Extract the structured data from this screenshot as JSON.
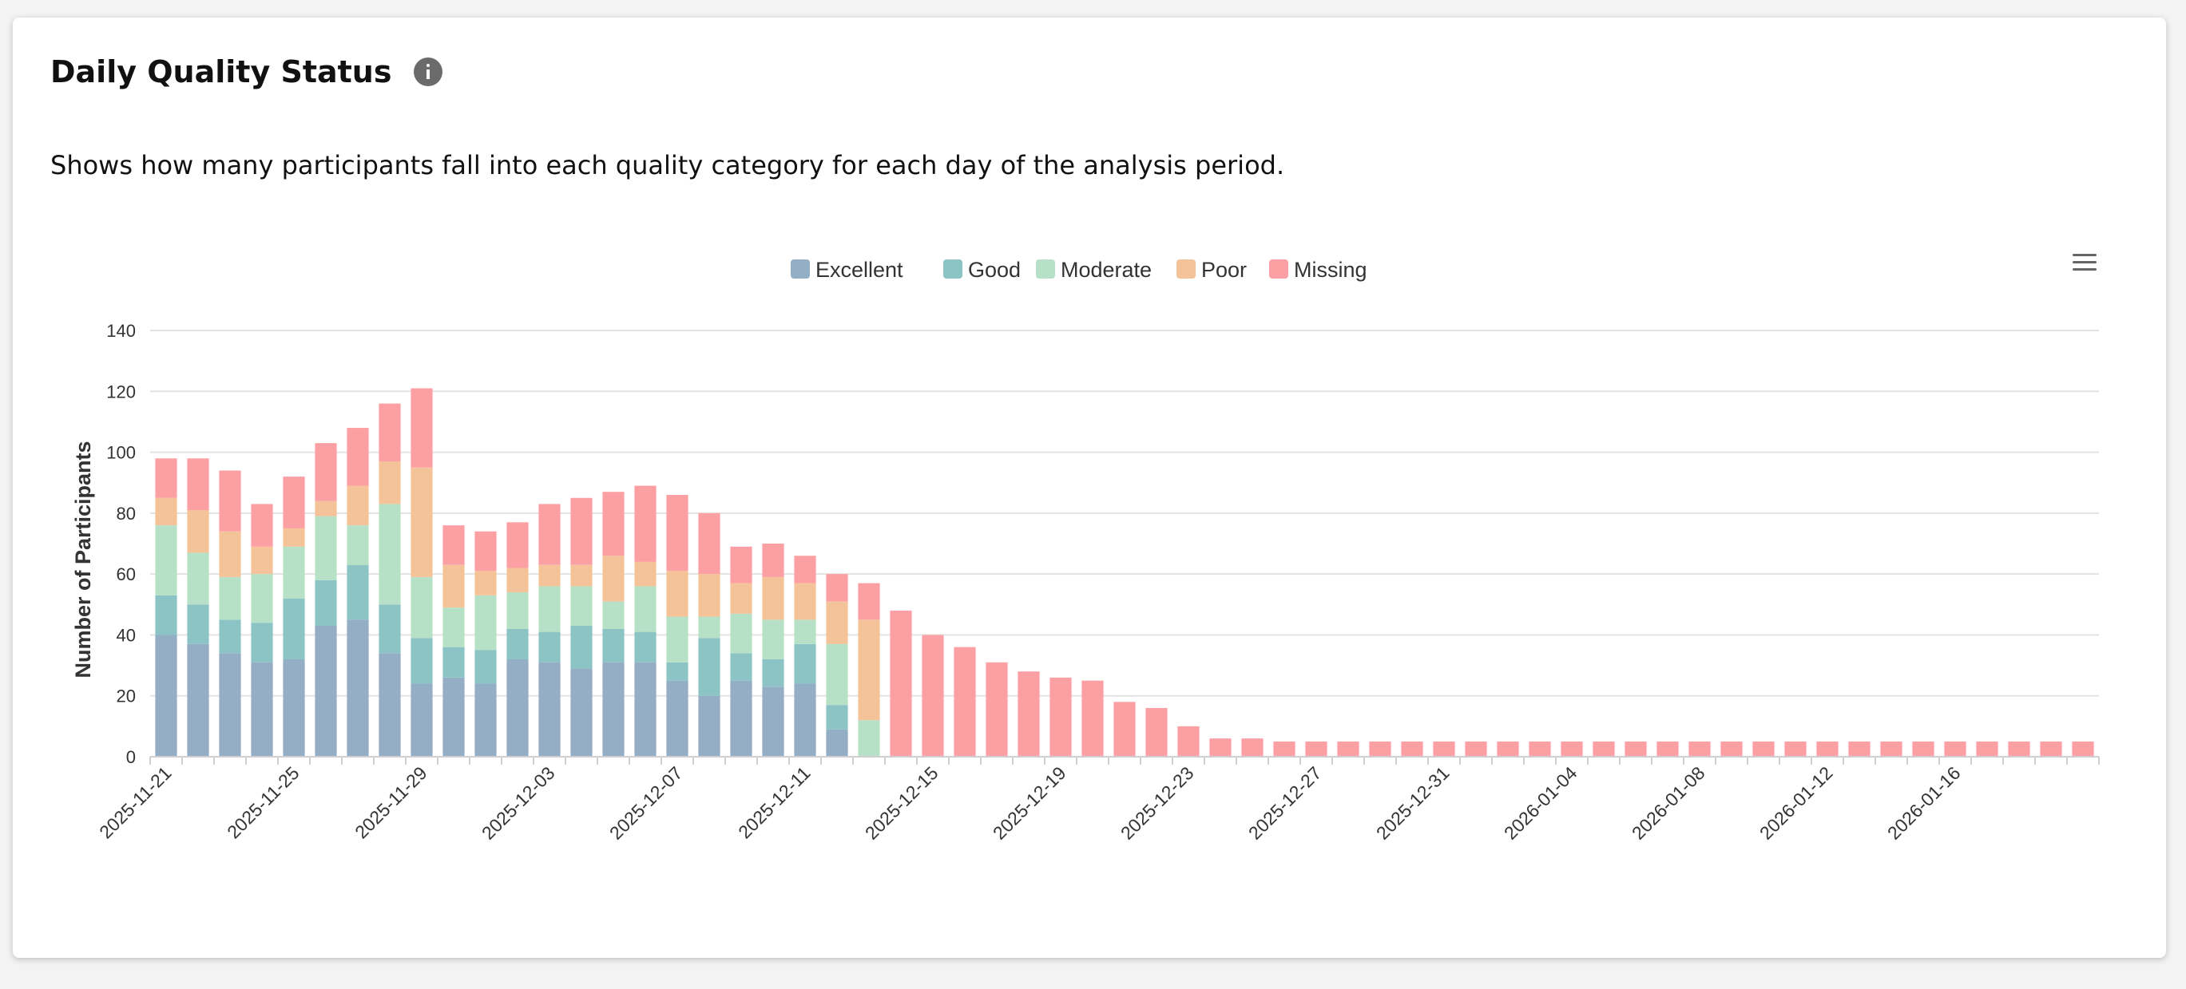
{
  "card": {
    "title": "Daily Quality Status",
    "description": "Shows how many participants fall into each quality category for each day of the analysis period."
  },
  "colors": {
    "Excellent": "#94aec6",
    "Good": "#8cc4c5",
    "Moderate": "#b7e1c6",
    "Poor": "#f5c39a",
    "Missing": "#fda0a4"
  },
  "chart_data": {
    "type": "bar",
    "stacked": true,
    "title": "",
    "xlabel": "",
    "ylabel": "Number of Participants",
    "ylim": [
      0,
      140
    ],
    "yticks": [
      0,
      20,
      40,
      60,
      80,
      100,
      120,
      140
    ],
    "grid": true,
    "legend_position": "top-center",
    "categories": [
      "2025-11-21",
      "2025-11-22",
      "2025-11-23",
      "2025-11-24",
      "2025-11-25",
      "2025-11-26",
      "2025-11-27",
      "2025-11-28",
      "2025-11-29",
      "2025-11-30",
      "2025-12-01",
      "2025-12-02",
      "2025-12-03",
      "2025-12-04",
      "2025-12-05",
      "2025-12-06",
      "2025-12-07",
      "2025-12-08",
      "2025-12-09",
      "2025-12-10",
      "2025-12-11",
      "2025-12-12",
      "2025-12-13",
      "2025-12-14",
      "2025-12-15",
      "2025-12-16",
      "2025-12-17",
      "2025-12-18",
      "2025-12-19",
      "2025-12-20",
      "2025-12-21",
      "2025-12-22",
      "2025-12-23",
      "2025-12-24",
      "2025-12-25",
      "2025-12-26",
      "2025-12-27",
      "2025-12-28",
      "2025-12-29",
      "2025-12-30",
      "2025-12-31",
      "2026-01-01",
      "2026-01-02",
      "2026-01-03",
      "2026-01-04",
      "2026-01-05",
      "2026-01-06",
      "2026-01-07",
      "2026-01-08",
      "2026-01-09",
      "2026-01-10",
      "2026-01-11",
      "2026-01-12",
      "2026-01-13",
      "2026-01-14",
      "2026-01-15",
      "2026-01-16",
      "2026-01-17",
      "2026-01-18",
      "2026-01-19",
      "2026-01-20"
    ],
    "tick_labels": [
      "2025-11-21",
      "2025-11-25",
      "2025-11-29",
      "2025-12-03",
      "2025-12-07",
      "2025-12-11",
      "2025-12-15",
      "2025-12-19",
      "2025-12-23",
      "2025-12-27",
      "2025-12-31",
      "2026-01-04",
      "2026-01-08",
      "2026-01-12",
      "2026-01-16"
    ],
    "series": [
      {
        "name": "Excellent",
        "values": [
          40,
          37,
          34,
          31,
          32,
          43,
          45,
          34,
          24,
          26,
          24,
          32,
          31,
          29,
          31,
          31,
          25,
          20,
          25,
          23,
          24,
          9,
          0,
          0,
          0,
          0,
          0,
          0,
          0,
          0,
          0,
          0,
          0,
          0,
          0,
          0,
          0,
          0,
          0,
          0,
          0,
          0,
          0,
          0,
          0,
          0,
          0,
          0,
          0,
          0,
          0,
          0,
          0,
          0,
          0,
          0,
          0,
          0,
          0,
          0,
          0
        ]
      },
      {
        "name": "Good",
        "values": [
          13,
          13,
          11,
          13,
          20,
          15,
          18,
          16,
          15,
          10,
          11,
          10,
          10,
          14,
          11,
          10,
          6,
          19,
          9,
          9,
          13,
          8,
          0,
          0,
          0,
          0,
          0,
          0,
          0,
          0,
          0,
          0,
          0,
          0,
          0,
          0,
          0,
          0,
          0,
          0,
          0,
          0,
          0,
          0,
          0,
          0,
          0,
          0,
          0,
          0,
          0,
          0,
          0,
          0,
          0,
          0,
          0,
          0,
          0,
          0,
          0
        ]
      },
      {
        "name": "Moderate",
        "values": [
          23,
          17,
          14,
          16,
          17,
          21,
          13,
          33,
          20,
          13,
          18,
          12,
          15,
          13,
          9,
          15,
          15,
          7,
          13,
          13,
          8,
          20,
          12,
          0,
          0,
          0,
          0,
          0,
          0,
          0,
          0,
          0,
          0,
          0,
          0,
          0,
          0,
          0,
          0,
          0,
          0,
          0,
          0,
          0,
          0,
          0,
          0,
          0,
          0,
          0,
          0,
          0,
          0,
          0,
          0,
          0,
          0,
          0,
          0,
          0,
          0
        ]
      },
      {
        "name": "Poor",
        "values": [
          9,
          14,
          15,
          9,
          6,
          5,
          13,
          14,
          36,
          14,
          8,
          8,
          7,
          7,
          15,
          8,
          15,
          14,
          10,
          14,
          12,
          14,
          33,
          0,
          0,
          0,
          0,
          0,
          0,
          0,
          0,
          0,
          0,
          0,
          0,
          0,
          0,
          0,
          0,
          0,
          0,
          0,
          0,
          0,
          0,
          0,
          0,
          0,
          0,
          0,
          0,
          0,
          0,
          0,
          0,
          0,
          0,
          0,
          0,
          0,
          0
        ]
      },
      {
        "name": "Missing",
        "values": [
          13,
          17,
          20,
          14,
          17,
          19,
          19,
          19,
          26,
          13,
          13,
          15,
          20,
          22,
          21,
          25,
          25,
          20,
          12,
          11,
          9,
          9,
          12,
          48,
          40,
          36,
          31,
          28,
          26,
          25,
          18,
          16,
          10,
          6,
          6,
          5,
          5,
          5,
          5,
          5,
          5,
          5,
          5,
          5,
          5,
          5,
          5,
          5,
          5,
          5,
          5,
          5,
          5,
          5,
          5,
          5,
          5,
          5,
          5,
          5,
          5
        ]
      }
    ]
  }
}
